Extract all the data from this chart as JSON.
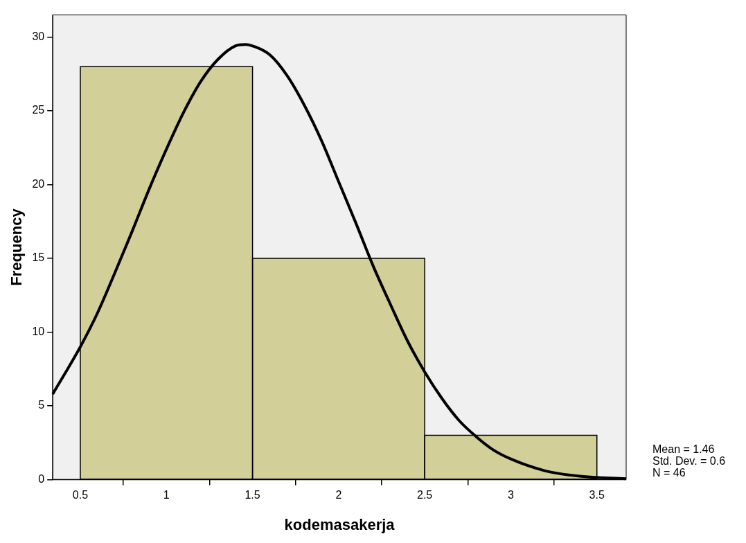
{
  "chart_data": {
    "type": "histogram",
    "xlabel": "kodemasakerja",
    "ylabel": "Frequency",
    "bins": [
      0.5,
      1.5,
      2.5,
      3.5
    ],
    "values": [
      28,
      15,
      3
    ],
    "color": "#d3cf99",
    "series": [
      {
        "type": "line",
        "color": "#000000",
        "x": [
          0.34,
          0.5,
          0.6,
          0.7,
          0.8,
          0.9,
          1.0,
          1.1,
          1.2,
          1.3,
          1.4,
          1.46,
          1.5,
          1.6,
          1.7,
          1.8,
          1.9,
          2.0,
          2.1,
          2.2,
          2.3,
          2.4,
          2.5,
          2.6,
          2.7,
          2.8,
          2.9,
          3.0,
          3.2,
          3.4,
          3.67
        ],
        "values": [
          5.8,
          9.0,
          11.3,
          14.0,
          16.8,
          19.7,
          22.4,
          24.9,
          27.0,
          28.5,
          29.4,
          29.5,
          29.4,
          28.8,
          27.4,
          25.4,
          23.0,
          20.2,
          17.4,
          14.5,
          11.9,
          9.4,
          7.3,
          5.5,
          4.0,
          2.9,
          2.0,
          1.4,
          0.59,
          0.23,
          0.05
        ]
      }
    ],
    "xlim": [
      0.34,
      3.67
    ],
    "ylim": [
      0,
      31.5
    ],
    "xticks": [
      0.5,
      1,
      1.5,
      2,
      2.5,
      3,
      3.5
    ],
    "yticks": [
      0,
      5,
      10,
      15,
      20,
      25,
      30
    ],
    "grid": false,
    "annotations": [
      "Mean = 1.46",
      "Std. Dev. = 0.6",
      "N = 46"
    ]
  }
}
